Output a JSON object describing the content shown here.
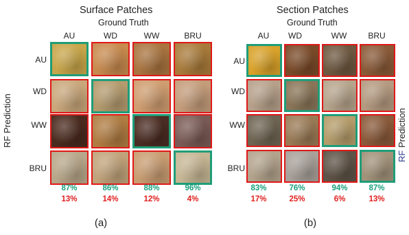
{
  "figure": {
    "panels": [
      {
        "title": "Surface Patches",
        "subtitle": "Ground Truth",
        "side_label": {
          "rf": "RF",
          "prediction": "Prediction"
        },
        "columns": [
          "AU",
          "WD",
          "WW",
          "BRU"
        ],
        "rows": [
          "AU",
          "WD",
          "WW",
          "BRU"
        ],
        "correct_pct": [
          "87%",
          "86%",
          "88%",
          "96%"
        ],
        "incorrect_pct": [
          "13%",
          "14%",
          "12%",
          "4%"
        ],
        "caption": "(a)",
        "patch_colors": [
          [
            "#c8a64a",
            "#c88a4e",
            "#a9743f",
            "#a97b3a"
          ],
          [
            "#c9a77b",
            "#b49b6e",
            "#cf9d70",
            "#c49c7a"
          ],
          [
            "#4a2a1e",
            "#b07c42",
            "#4a2c22",
            "#7a5a55"
          ],
          [
            "#b8a78a",
            "#c1a37b",
            "#c99d72",
            "#c6b694"
          ]
        ]
      },
      {
        "title": "Section Patches",
        "subtitle": "Ground Truth",
        "side_label": {
          "rf": "RF",
          "prediction": "Prediction"
        },
        "columns": [
          "AU",
          "WD",
          "WW",
          "BRU"
        ],
        "rows": [
          "AU",
          "WD",
          "WW",
          "BRU"
        ],
        "correct_pct": [
          "83%",
          "76%",
          "94%",
          "87%"
        ],
        "incorrect_pct": [
          "17%",
          "25%",
          "6%",
          "13%"
        ],
        "caption": "(b)",
        "patch_colors": [
          [
            "#d9a22a",
            "#7a4a28",
            "#6e5840",
            "#8a5a38"
          ],
          [
            "#b6a08a",
            "#8a7558",
            "#b6a48c",
            "#b49a80"
          ],
          [
            "#6e6452",
            "#9a7a55",
            "#b59c6a",
            "#8a5a3a"
          ],
          [
            "#b3a38c",
            "#a8a09a",
            "#5e5346",
            "#a2937a"
          ]
        ]
      }
    ],
    "correct_border_color": "#1f9d78",
    "wrong_border_color": "#e01818"
  }
}
